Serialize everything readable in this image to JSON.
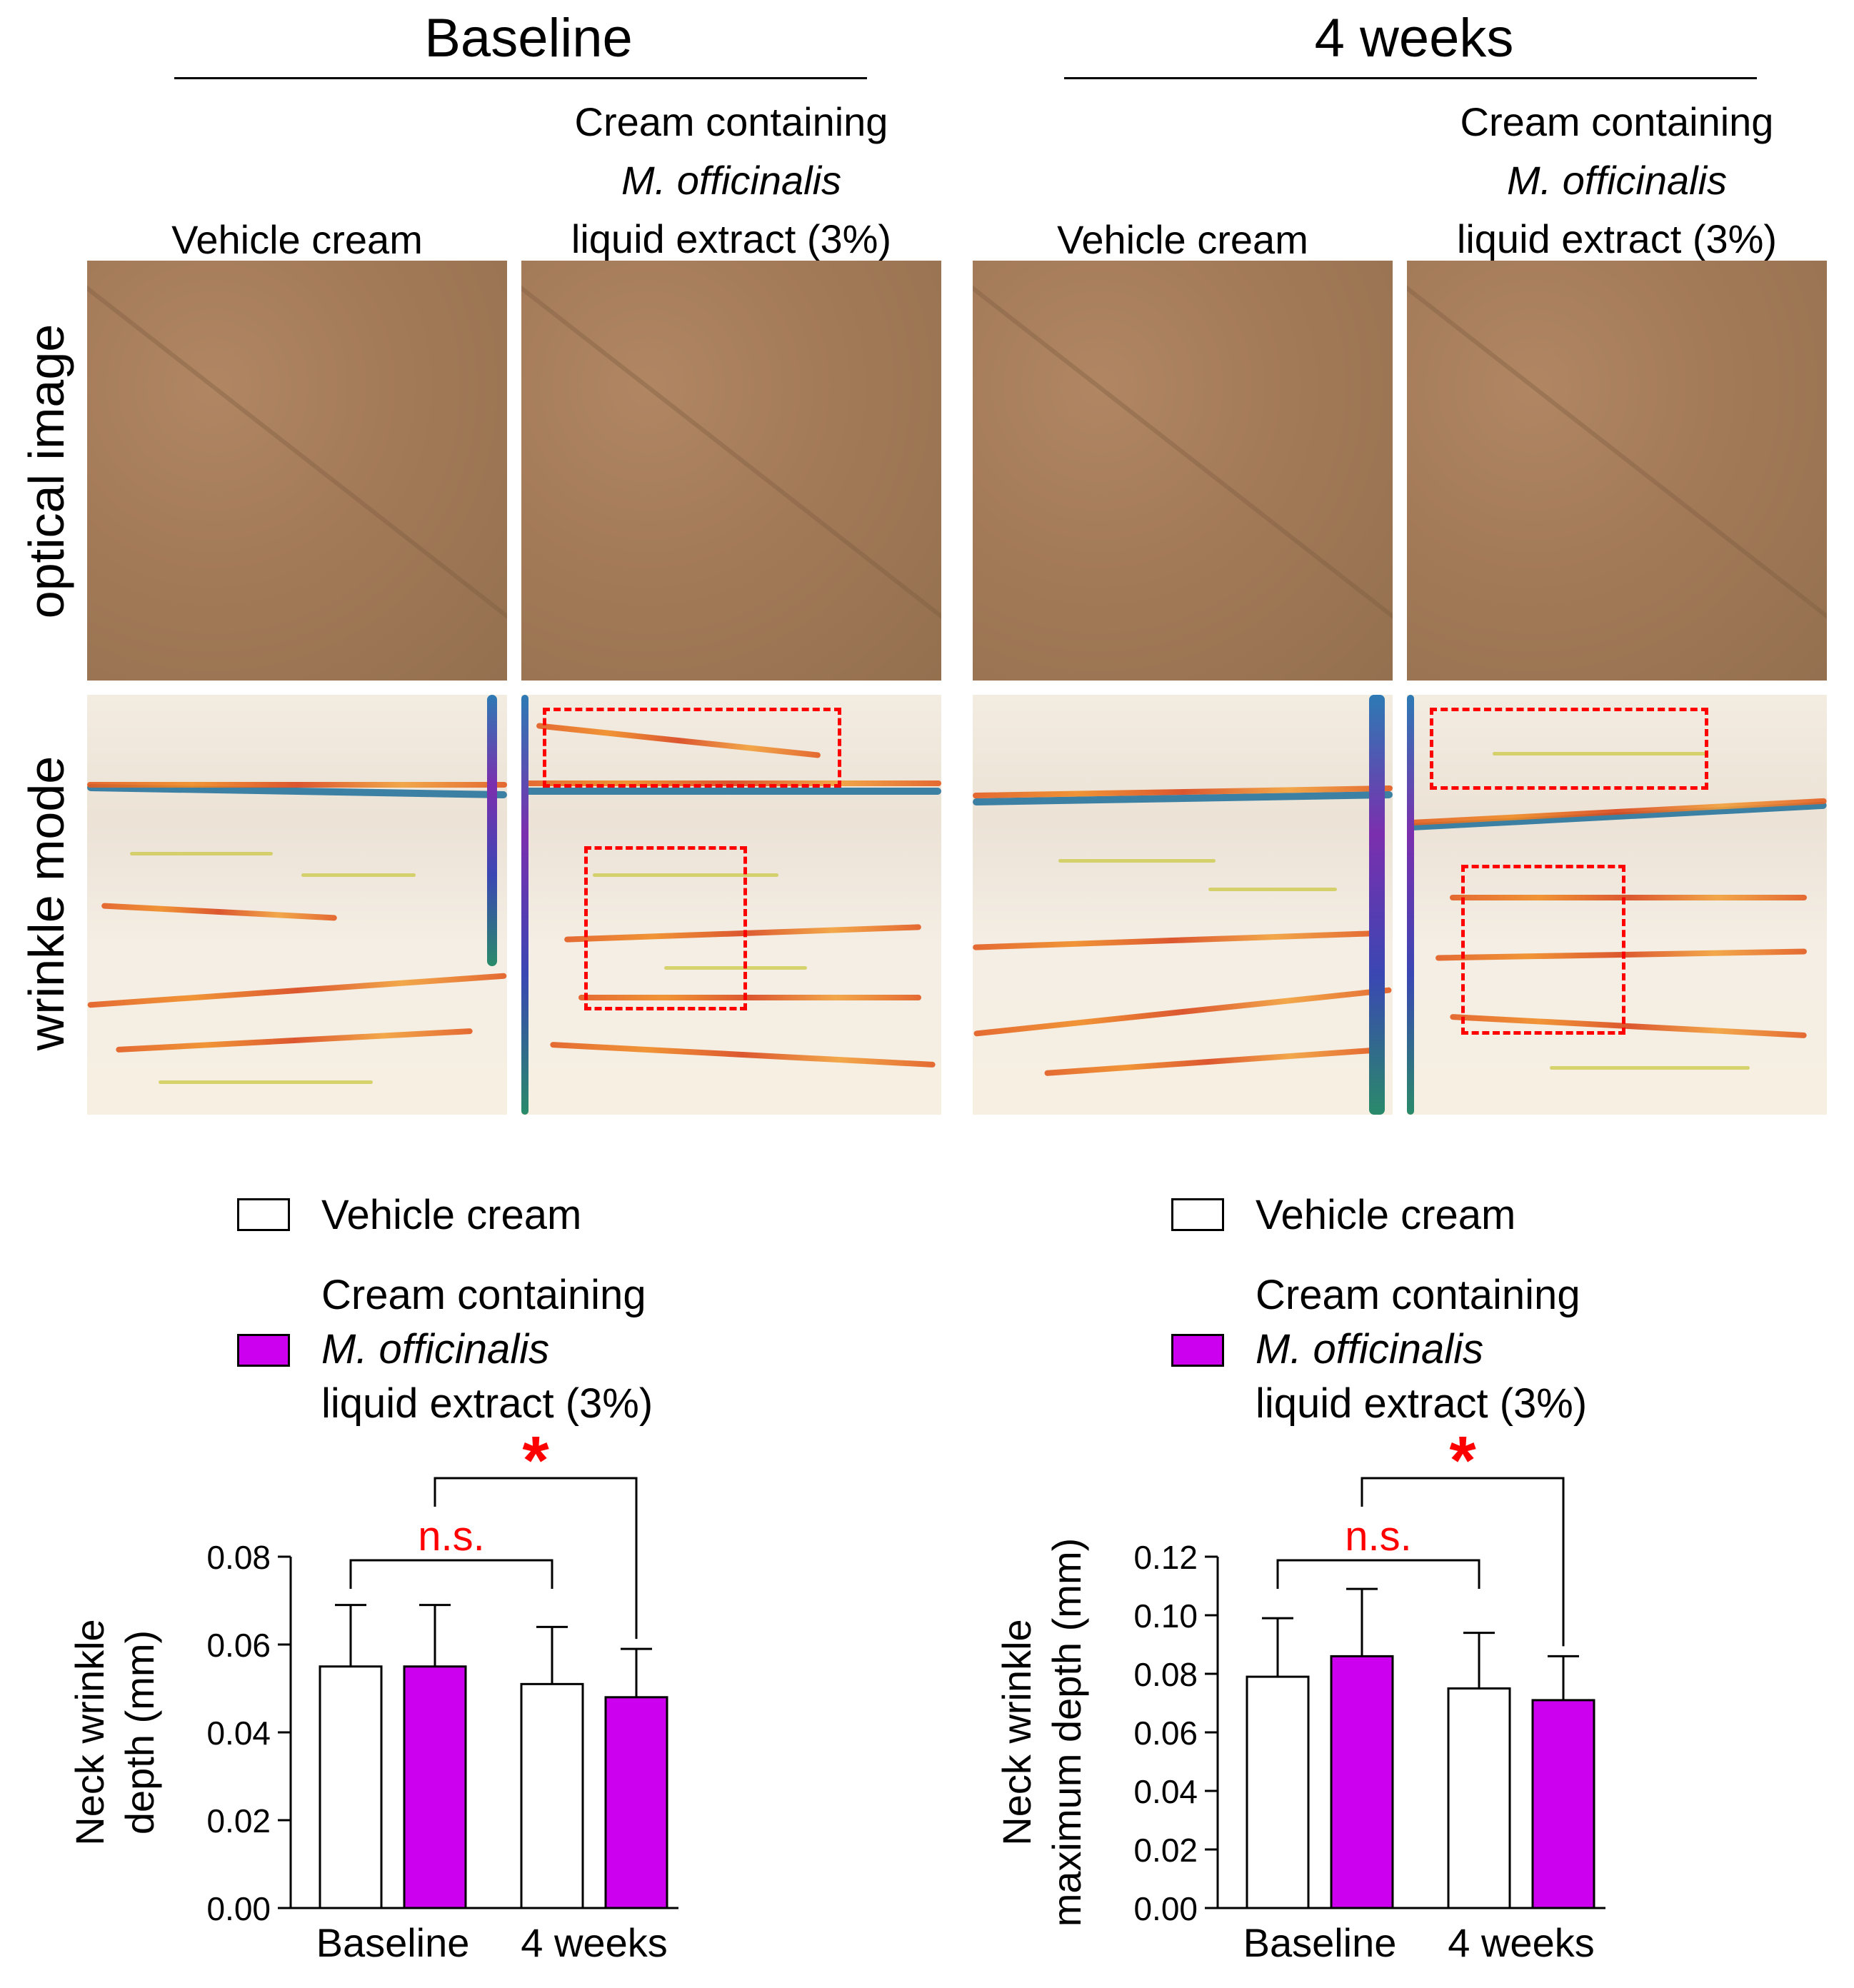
{
  "figure": {
    "groups": [
      {
        "title": "Baseline",
        "columns": [
          "Vehicle cream",
          [
            "Cream containing",
            "M. officinalis",
            "liquid extract (3%)"
          ]
        ]
      },
      {
        "title": "4 weeks",
        "columns": [
          "Vehicle cream",
          [
            "Cream containing",
            "M. officinalis",
            "liquid extract (3%)"
          ]
        ]
      }
    ],
    "row_labels": [
      "optical image",
      "wrinkle mode"
    ]
  },
  "legend": {
    "vehicle": "Vehicle cream",
    "treatment_line1": "Cream containing",
    "treatment_line2": "M. officinalis",
    "treatment_line3": "liquid extract (3%)"
  },
  "colors": {
    "vehicle": "#ffffff",
    "treatment": "#cc00ee",
    "significance": "#ff0000"
  },
  "chart_data": [
    {
      "type": "bar",
      "categories": [
        "Baseline",
        "4 weeks"
      ],
      "series": [
        {
          "name": "Vehicle cream",
          "values": [
            0.055,
            0.051
          ],
          "errors": [
            0.014,
            0.013
          ]
        },
        {
          "name": "Cream containing M. officinalis liquid extract (3%)",
          "values": [
            0.055,
            0.048
          ],
          "errors": [
            0.014,
            0.011
          ]
        }
      ],
      "ylabel_line1": "Neck wrinkle",
      "ylabel_line2": "depth (mm)",
      "ylim": [
        0,
        0.08
      ],
      "yticks": [
        "0.00",
        "0.02",
        "0.04",
        "0.06",
        "0.08"
      ],
      "annotations": [
        {
          "text": "n.s.",
          "between": "vehicle"
        },
        {
          "text": "*",
          "between": "treatment"
        }
      ]
    },
    {
      "type": "bar",
      "categories": [
        "Baseline",
        "4 weeks"
      ],
      "series": [
        {
          "name": "Vehicle cream",
          "values": [
            0.079,
            0.075
          ],
          "errors": [
            0.02,
            0.019
          ]
        },
        {
          "name": "Cream containing M. officinalis liquid extract (3%)",
          "values": [
            0.086,
            0.071
          ],
          "errors": [
            0.023,
            0.015
          ]
        }
      ],
      "ylabel_line1": "Neck wrinkle",
      "ylabel_line2": "maximum depth (mm)",
      "ylim": [
        0,
        0.12
      ],
      "yticks": [
        "0.00",
        "0.02",
        "0.04",
        "0.06",
        "0.08",
        "0.10",
        "0.12"
      ],
      "annotations": [
        {
          "text": "n.s.",
          "between": "vehicle"
        },
        {
          "text": "*",
          "between": "treatment"
        }
      ]
    }
  ]
}
